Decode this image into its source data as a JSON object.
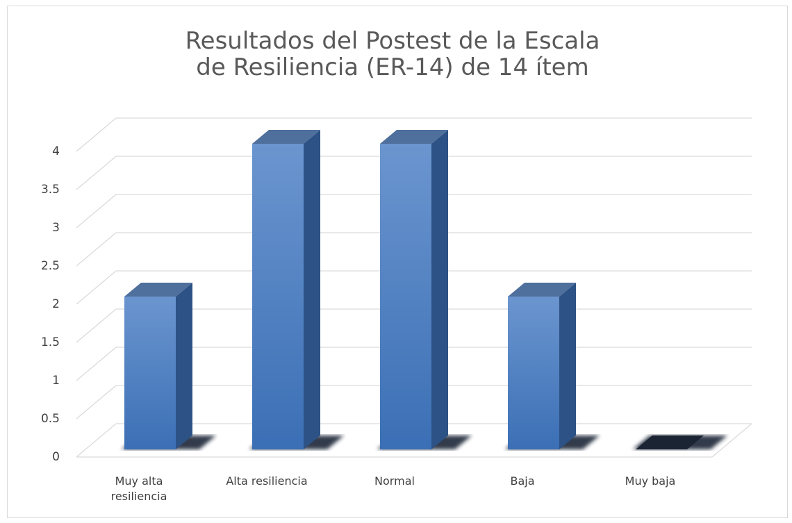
{
  "chart_data": {
    "type": "bar3d",
    "title": "Resultados del Postest de la Escala de Resiliencia (ER-14) de 14 ítem",
    "categories": [
      "Muy alta resiliencia",
      "Alta resiliencia",
      "Normal",
      "Baja",
      "Muy baja"
    ],
    "values": [
      2,
      4,
      4,
      2,
      0
    ],
    "color": "#4a7fc4",
    "ylim": [
      0,
      4
    ],
    "yticks": [
      0,
      0.5,
      1,
      1.5,
      2,
      2.5,
      3,
      3.5,
      4
    ],
    "grid": true
  }
}
